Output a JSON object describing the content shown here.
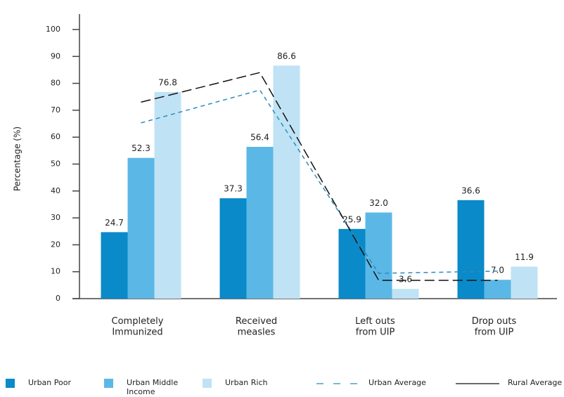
{
  "chart_data": {
    "type": "bar",
    "y_label": "Percentage (%)",
    "categories": [
      "Completely\nImmunized",
      "Received\nmeasles",
      "Left outs\nfrom UIP",
      "Drop outs\nfrom UIP"
    ],
    "series": [
      {
        "name": "Urban Poor",
        "color": "#0a8ac8",
        "values": [
          24.7,
          37.3,
          25.9,
          36.6
        ]
      },
      {
        "name": "Urban Middle\nIncome",
        "color": "#5bb8e6",
        "values": [
          52.3,
          56.4,
          32.0,
          7.0
        ],
        "value_labels": [
          "52.3",
          "56.4",
          "32.0",
          "7.0"
        ]
      },
      {
        "name": "Urban Rich",
        "color": "#bfe3f5",
        "values": [
          76.8,
          86.6,
          3.6,
          11.9
        ]
      }
    ],
    "lines": [
      {
        "name": "Urban Average",
        "color": "#2a8cc0",
        "values": [
          65.3,
          77.5,
          9.4,
          10.2
        ]
      },
      {
        "name": "Rural Average",
        "color": "#111111",
        "values": [
          73,
          84,
          6.8,
          6.8
        ]
      }
    ],
    "ylim": [
      0,
      100
    ],
    "yticks": [
      0,
      10,
      20,
      30,
      40,
      50,
      60,
      70,
      80,
      90,
      100
    ]
  }
}
